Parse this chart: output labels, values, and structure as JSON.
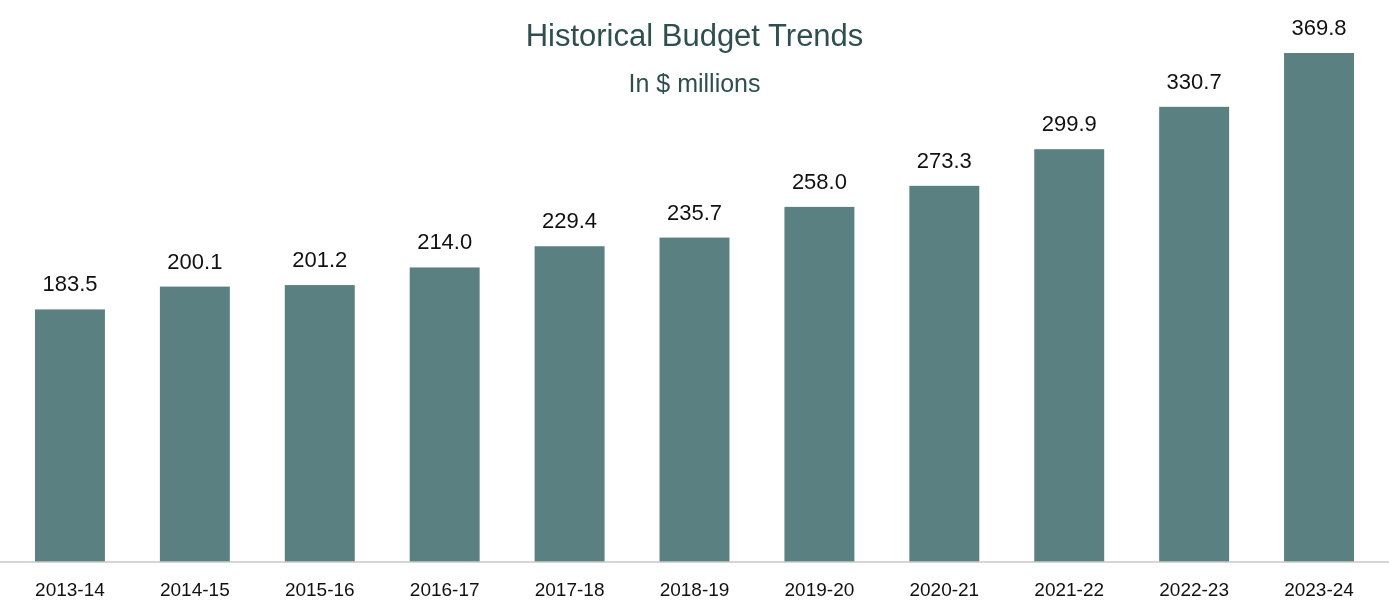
{
  "chart_data": {
    "type": "bar",
    "title": "Historical Budget Trends",
    "subtitle": "In $ millions",
    "categories": [
      "2013-14",
      "2014-15",
      "2015-16",
      "2016-17",
      "2017-18",
      "2018-19",
      "2019-20",
      "2020-21",
      "2021-22",
      "2022-23",
      "2023-24"
    ],
    "values": [
      183.5,
      200.1,
      201.2,
      214.0,
      229.4,
      235.7,
      258.0,
      273.3,
      299.9,
      330.7,
      369.8
    ],
    "value_labels": [
      "183.5",
      "200.1",
      "201.2",
      "214.0",
      "229.4",
      "235.7",
      "258.0",
      "273.3",
      "299.9",
      "330.7",
      "369.8"
    ],
    "color": "#5a8081"
  }
}
